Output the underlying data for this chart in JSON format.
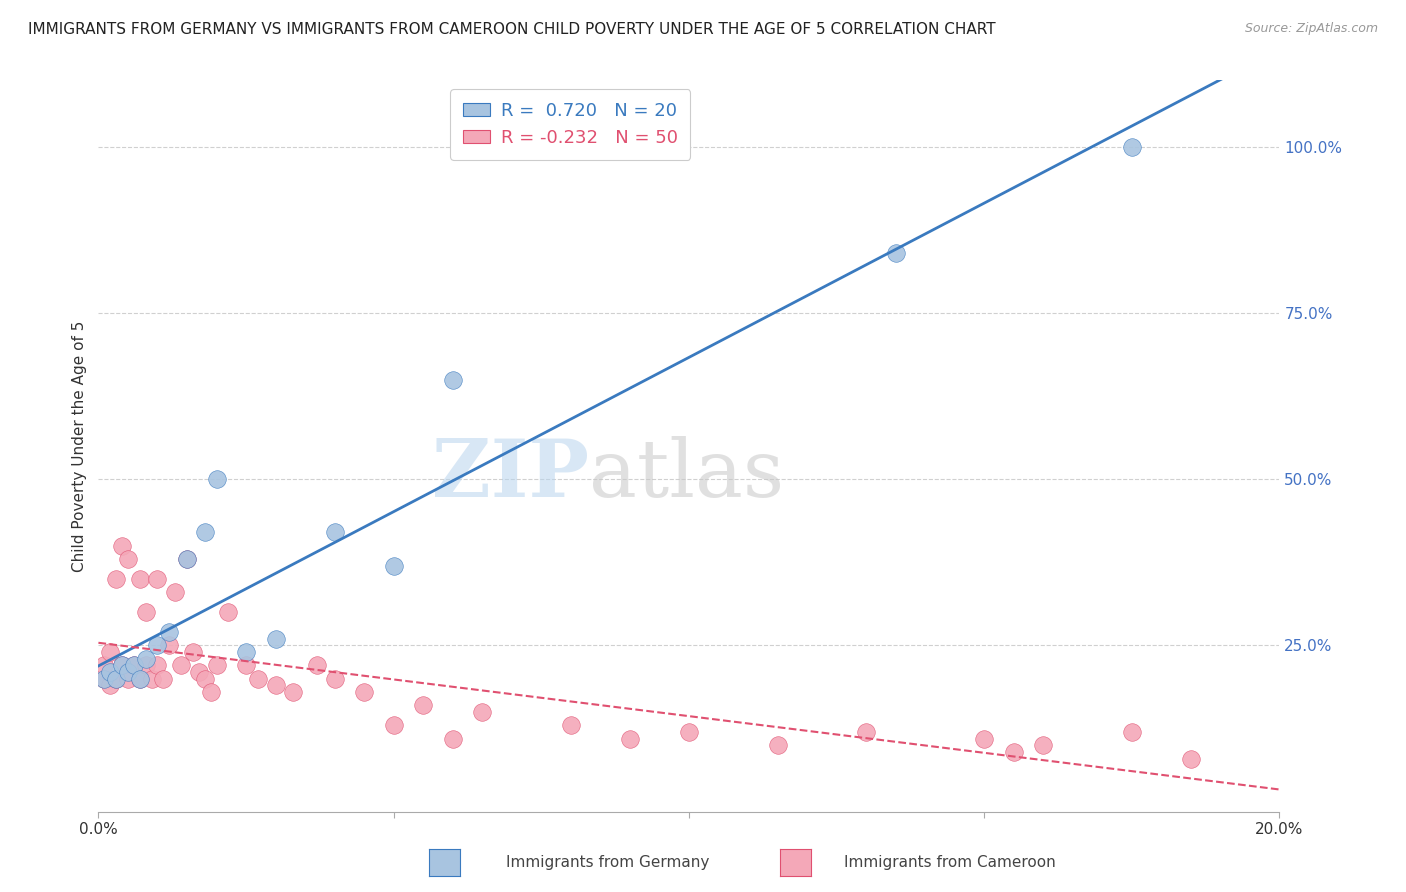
{
  "title": "IMMIGRANTS FROM GERMANY VS IMMIGRANTS FROM CAMEROON CHILD POVERTY UNDER THE AGE OF 5 CORRELATION CHART",
  "source": "Source: ZipAtlas.com",
  "ylabel": "Child Poverty Under the Age of 5",
  "germany_R": 0.72,
  "germany_N": 20,
  "cameroon_R": -0.232,
  "cameroon_N": 50,
  "germany_color": "#a8c4e0",
  "germany_line_color": "#3a7abf",
  "cameroon_color": "#f4a8b8",
  "cameroon_line_color": "#e05070",
  "watermark_zip": "ZIP",
  "watermark_atlas": "atlas",
  "germany_x": [
    0.001,
    0.002,
    0.003,
    0.004,
    0.005,
    0.006,
    0.007,
    0.008,
    0.01,
    0.012,
    0.015,
    0.018,
    0.02,
    0.025,
    0.03,
    0.04,
    0.05,
    0.06,
    0.135,
    0.175
  ],
  "germany_y": [
    0.2,
    0.21,
    0.2,
    0.22,
    0.21,
    0.22,
    0.2,
    0.23,
    0.25,
    0.27,
    0.38,
    0.42,
    0.5,
    0.24,
    0.26,
    0.42,
    0.37,
    0.65,
    0.84,
    1.0
  ],
  "cameroon_x": [
    0.001,
    0.001,
    0.002,
    0.002,
    0.003,
    0.003,
    0.004,
    0.004,
    0.005,
    0.005,
    0.006,
    0.007,
    0.007,
    0.008,
    0.008,
    0.009,
    0.01,
    0.01,
    0.011,
    0.012,
    0.013,
    0.014,
    0.015,
    0.016,
    0.017,
    0.018,
    0.019,
    0.02,
    0.022,
    0.025,
    0.027,
    0.03,
    0.033,
    0.037,
    0.04,
    0.045,
    0.05,
    0.055,
    0.06,
    0.065,
    0.08,
    0.09,
    0.1,
    0.115,
    0.13,
    0.15,
    0.155,
    0.16,
    0.175,
    0.185
  ],
  "cameroon_y": [
    0.2,
    0.22,
    0.19,
    0.24,
    0.2,
    0.35,
    0.22,
    0.4,
    0.2,
    0.38,
    0.22,
    0.2,
    0.35,
    0.22,
    0.3,
    0.2,
    0.22,
    0.35,
    0.2,
    0.25,
    0.33,
    0.22,
    0.38,
    0.24,
    0.21,
    0.2,
    0.18,
    0.22,
    0.3,
    0.22,
    0.2,
    0.19,
    0.18,
    0.22,
    0.2,
    0.18,
    0.13,
    0.16,
    0.11,
    0.15,
    0.13,
    0.11,
    0.12,
    0.1,
    0.12,
    0.11,
    0.09,
    0.1,
    0.12,
    0.08
  ],
  "xlim": [
    0.0,
    0.2
  ],
  "ylim": [
    0.0,
    1.1
  ],
  "right_ytick_values": [
    0.25,
    0.5,
    0.75,
    1.0
  ],
  "right_ytick_labels": [
    "25.0%",
    "50.0%",
    "75.0%",
    "100.0%"
  ],
  "xtick_positions": [
    0.0,
    0.05,
    0.1,
    0.15,
    0.2
  ],
  "xtick_labels": [
    "0.0%",
    "",
    "",
    "",
    "20.0%"
  ],
  "background_color": "#ffffff",
  "legend_label_germany": "Immigrants from Germany",
  "legend_label_cameroon": "Immigrants from Cameroon",
  "grid_color": "#d0d0d0",
  "title_fontsize": 11,
  "axis_label_fontsize": 11,
  "tick_fontsize": 11,
  "right_tick_color": "#4472C4"
}
